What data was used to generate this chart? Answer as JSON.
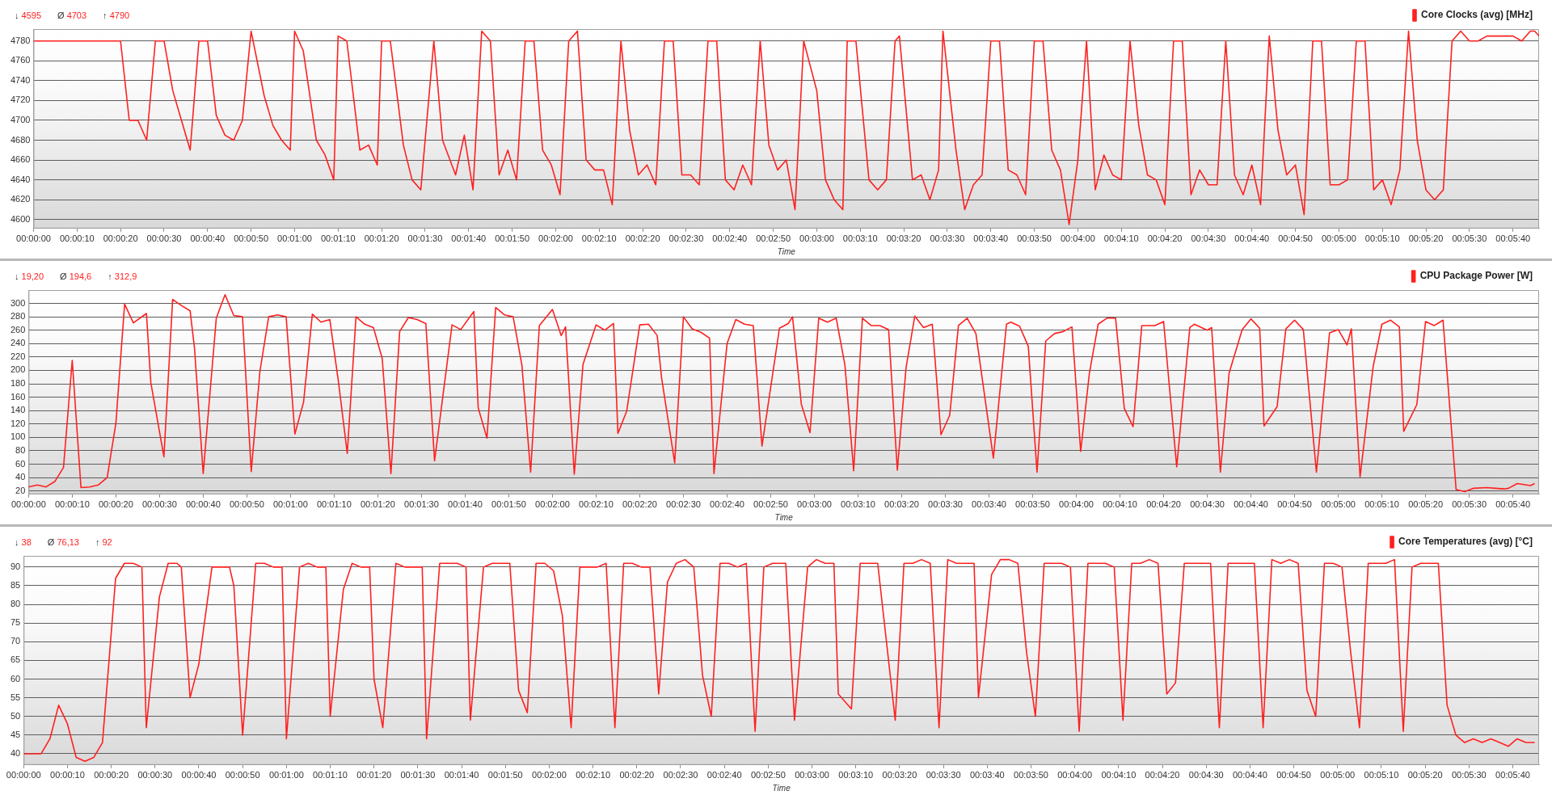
{
  "chart_data": [
    {
      "type": "line",
      "annotations": [
        "↓ 4595",
        "Ø 4703",
        "↑ 4790"
      ],
      "xlabel": "Time",
      "legend": "top right",
      "grid": "y",
      "marker": "none",
      "line_style": "solid",
      "xlim": [
        0,
        346
      ],
      "ylim": [
        4591,
        4792
      ],
      "yticks": [
        4600,
        4620,
        4640,
        4660,
        4680,
        4700,
        4720,
        4740,
        4760,
        4780
      ],
      "xticks": [
        {
          "value": 0,
          "label": "00:00:00"
        },
        {
          "value": 10,
          "label": "00:00:10"
        },
        {
          "value": 20,
          "label": "00:00:20"
        },
        {
          "value": 30,
          "label": "00:00:30"
        },
        {
          "value": 40,
          "label": "00:00:40"
        },
        {
          "value": 50,
          "label": "00:00:50"
        },
        {
          "value": 60,
          "label": "00:01:00"
        },
        {
          "value": 70,
          "label": "00:01:10"
        },
        {
          "value": 80,
          "label": "00:01:20"
        },
        {
          "value": 90,
          "label": "00:01:30"
        },
        {
          "value": 100,
          "label": "00:01:40"
        },
        {
          "value": 110,
          "label": "00:01:50"
        },
        {
          "value": 120,
          "label": "00:02:00"
        },
        {
          "value": 130,
          "label": "00:02:10"
        },
        {
          "value": 140,
          "label": "00:02:20"
        },
        {
          "value": 150,
          "label": "00:02:30"
        },
        {
          "value": 160,
          "label": "00:02:40"
        },
        {
          "value": 170,
          "label": "00:02:50"
        },
        {
          "value": 180,
          "label": "00:03:00"
        },
        {
          "value": 190,
          "label": "00:03:10"
        },
        {
          "value": 200,
          "label": "00:03:20"
        },
        {
          "value": 210,
          "label": "00:03:30"
        },
        {
          "value": 220,
          "label": "00:03:40"
        },
        {
          "value": 230,
          "label": "00:03:50"
        },
        {
          "value": 240,
          "label": "00:04:00"
        },
        {
          "value": 250,
          "label": "00:04:10"
        },
        {
          "value": 260,
          "label": "00:04:20"
        },
        {
          "value": 270,
          "label": "00:04:30"
        },
        {
          "value": 280,
          "label": "00:04:40"
        },
        {
          "value": 290,
          "label": "00:04:50"
        },
        {
          "value": 300,
          "label": "00:05:00"
        },
        {
          "value": 310,
          "label": "00:05:10"
        },
        {
          "value": 320,
          "label": "00:05:20"
        },
        {
          "value": 330,
          "label": "00:05:30"
        },
        {
          "value": 340,
          "label": "00:05:40"
        }
      ],
      "x": [
        0,
        20,
        22,
        24,
        26,
        28,
        30,
        32,
        34,
        36,
        38,
        40,
        42,
        44,
        46,
        48,
        50,
        53,
        55,
        57,
        59,
        60,
        62,
        65,
        67,
        69,
        70,
        72,
        75,
        77,
        79,
        80,
        82,
        85,
        87,
        89,
        92,
        94,
        97,
        99,
        101,
        103,
        105,
        107,
        109,
        111,
        113,
        115,
        117,
        119,
        121,
        123,
        125,
        127,
        129,
        131,
        133,
        135,
        137,
        139,
        141,
        143,
        145,
        147,
        149,
        151,
        153,
        155,
        157,
        159,
        161,
        163,
        165,
        167,
        169,
        171,
        173,
        175,
        177,
        180,
        182,
        184,
        186,
        187,
        189,
        192,
        194,
        196,
        198,
        199,
        202,
        204,
        206,
        208,
        209,
        212,
        214,
        216,
        218,
        220,
        222,
        224,
        226,
        228,
        230,
        232,
        234,
        236,
        238,
        240,
        242,
        244,
        246,
        248,
        250,
        252,
        254,
        256,
        258,
        260,
        262,
        264,
        266,
        268,
        270,
        272,
        274,
        276,
        278,
        280,
        282,
        284,
        286,
        288,
        290,
        292,
        294,
        296,
        298,
        300,
        302,
        304,
        306,
        308,
        310,
        312,
        314,
        316,
        318,
        320,
        322,
        324,
        326,
        328,
        330,
        332,
        334,
        340,
        342,
        344,
        345,
        346
      ],
      "series": [
        {
          "name": "Core Clocks (avg) [MHz]",
          "color": "#ff2020",
          "values": [
            4780,
            4780,
            4700,
            4700,
            4680,
            4780,
            4780,
            4730,
            4700,
            4670,
            4780,
            4780,
            4705,
            4685,
            4680,
            4700,
            4790,
            4725,
            4695,
            4680,
            4670,
            4790,
            4770,
            4680,
            4665,
            4640,
            4785,
            4780,
            4670,
            4675,
            4655,
            4780,
            4780,
            4675,
            4640,
            4630,
            4780,
            4680,
            4645,
            4685,
            4630,
            4790,
            4780,
            4645,
            4670,
            4640,
            4780,
            4780,
            4670,
            4655,
            4625,
            4780,
            4790,
            4660,
            4650,
            4650,
            4615,
            4780,
            4690,
            4645,
            4655,
            4635,
            4780,
            4780,
            4645,
            4645,
            4635,
            4780,
            4780,
            4640,
            4630,
            4655,
            4635,
            4780,
            4675,
            4650,
            4660,
            4610,
            4780,
            4730,
            4640,
            4620,
            4610,
            4780,
            4780,
            4640,
            4630,
            4640,
            4780,
            4785,
            4640,
            4645,
            4620,
            4650,
            4790,
            4670,
            4610,
            4635,
            4645,
            4780,
            4780,
            4650,
            4645,
            4625,
            4780,
            4780,
            4670,
            4650,
            4595,
            4660,
            4780,
            4630,
            4665,
            4645,
            4640,
            4780,
            4695,
            4645,
            4640,
            4615,
            4780,
            4780,
            4625,
            4650,
            4635,
            4635,
            4780,
            4645,
            4625,
            4655,
            4615,
            4785,
            4690,
            4645,
            4655,
            4605,
            4780,
            4780,
            4635,
            4635,
            4640,
            4780,
            4780,
            4630,
            4640,
            4615,
            4650,
            4790,
            4680,
            4630,
            4620,
            4630,
            4780,
            4790,
            4780,
            4780,
            4785,
            4785,
            4780,
            4790,
            4790,
            4785
          ]
        }
      ]
    },
    {
      "type": "line",
      "annotations": [
        "↓ 19,20",
        "Ø 194,6",
        "↑ 312,9"
      ],
      "xlabel": "Time",
      "legend": "top right",
      "grid": "y",
      "marker": "none",
      "line_style": "solid",
      "xlim": [
        0,
        346
      ],
      "ylim": [
        15,
        320
      ],
      "yticks": [
        20,
        40,
        60,
        80,
        100,
        120,
        140,
        160,
        180,
        200,
        220,
        240,
        260,
        280,
        300
      ],
      "xticks": [
        {
          "value": 0,
          "label": "00:00:00"
        },
        {
          "value": 10,
          "label": "00:00:10"
        },
        {
          "value": 20,
          "label": "00:00:20"
        },
        {
          "value": 30,
          "label": "00:00:30"
        },
        {
          "value": 40,
          "label": "00:00:40"
        },
        {
          "value": 50,
          "label": "00:00:50"
        },
        {
          "value": 60,
          "label": "00:01:00"
        },
        {
          "value": 70,
          "label": "00:01:10"
        },
        {
          "value": 80,
          "label": "00:01:20"
        },
        {
          "value": 90,
          "label": "00:01:30"
        },
        {
          "value": 100,
          "label": "00:01:40"
        },
        {
          "value": 110,
          "label": "00:01:50"
        },
        {
          "value": 120,
          "label": "00:02:00"
        },
        {
          "value": 130,
          "label": "00:02:10"
        },
        {
          "value": 140,
          "label": "00:02:20"
        },
        {
          "value": 150,
          "label": "00:02:30"
        },
        {
          "value": 160,
          "label": "00:02:40"
        },
        {
          "value": 170,
          "label": "00:02:50"
        },
        {
          "value": 180,
          "label": "00:03:00"
        },
        {
          "value": 190,
          "label": "00:03:10"
        },
        {
          "value": 200,
          "label": "00:03:20"
        },
        {
          "value": 210,
          "label": "00:03:30"
        },
        {
          "value": 220,
          "label": "00:03:40"
        },
        {
          "value": 230,
          "label": "00:03:50"
        },
        {
          "value": 240,
          "label": "00:04:00"
        },
        {
          "value": 250,
          "label": "00:04:10"
        },
        {
          "value": 260,
          "label": "00:04:20"
        },
        {
          "value": 270,
          "label": "00:04:30"
        },
        {
          "value": 280,
          "label": "00:04:40"
        },
        {
          "value": 290,
          "label": "00:04:50"
        },
        {
          "value": 300,
          "label": "00:05:00"
        },
        {
          "value": 310,
          "label": "00:05:10"
        },
        {
          "value": 320,
          "label": "00:05:20"
        },
        {
          "value": 330,
          "label": "00:05:30"
        },
        {
          "value": 340,
          "label": "00:05:40"
        }
      ],
      "x": [
        0,
        2,
        4,
        6,
        8,
        10,
        12,
        14,
        16,
        18,
        20,
        22,
        24,
        27,
        28,
        31,
        33,
        35,
        37,
        38,
        40,
        43,
        45,
        47,
        49,
        51,
        53,
        55,
        57,
        59,
        61,
        63,
        65,
        67,
        69,
        71,
        73,
        75,
        77,
        79,
        81,
        83,
        85,
        87,
        89,
        91,
        93,
        97,
        99,
        102,
        103,
        105,
        107,
        109,
        111,
        113,
        115,
        117,
        120,
        122,
        123,
        125,
        127,
        130,
        132,
        134,
        135,
        137,
        140,
        142,
        144,
        145,
        148,
        150,
        152,
        154,
        156,
        157,
        160,
        162,
        164,
        166,
        168,
        172,
        174,
        175,
        177,
        179,
        181,
        183,
        185,
        187,
        189,
        191,
        193,
        195,
        197,
        199,
        201,
        203,
        205,
        207,
        209,
        211,
        213,
        215,
        217,
        221,
        224,
        225,
        227,
        229,
        231,
        233,
        235,
        237,
        239,
        241,
        243,
        245,
        247,
        249,
        251,
        253,
        255,
        258,
        260,
        261,
        263,
        266,
        267,
        270,
        271,
        273,
        275,
        278,
        280,
        282,
        283,
        286,
        288,
        290,
        292,
        295,
        298,
        300,
        302,
        303,
        305,
        308,
        310,
        312,
        314,
        315,
        318,
        320,
        322,
        324,
        327,
        329,
        331,
        334,
        336,
        338,
        339,
        341,
        344,
        345
      ],
      "series": [
        {
          "name": "CPU Package Power [W]",
          "color": "#ff2020",
          "values": [
            26,
            29,
            26,
            34,
            55,
            215,
            25,
            26,
            29,
            40,
            121,
            299,
            271,
            285,
            182,
            71,
            306,
            297,
            289,
            234,
            46,
            278,
            313,
            282,
            280,
            49,
            199,
            280,
            283,
            280,
            105,
            153,
            284,
            272,
            276,
            182,
            76,
            280,
            269,
            264,
            218,
            46,
            258,
            279,
            276,
            270,
            65,
            268,
            261,
            288,
            144,
            99,
            294,
            283,
            280,
            208,
            48,
            267,
            291,
            252,
            265,
            45,
            209,
            268,
            260,
            270,
            106,
            139,
            268,
            269,
            252,
            189,
            62,
            280,
            262,
            257,
            248,
            46,
            240,
            276,
            269,
            267,
            87,
            263,
            270,
            280,
            150,
            107,
            278,
            272,
            278,
            208,
            50,
            278,
            267,
            267,
            261,
            51,
            204,
            281,
            264,
            269,
            104,
            133,
            267,
            278,
            255,
            69,
            269,
            272,
            266,
            236,
            48,
            244,
            255,
            258,
            265,
            79,
            196,
            269,
            278,
            278,
            143,
            116,
            267,
            267,
            273,
            199,
            56,
            264,
            269,
            260,
            264,
            48,
            196,
            261,
            277,
            263,
            117,
            146,
            262,
            275,
            261,
            48,
            256,
            261,
            238,
            262,
            41,
            206,
            269,
            275,
            265,
            109,
            149,
            273,
            267,
            275,
            22,
            19,
            24,
            25,
            24,
            23,
            24,
            31,
            28,
            31
          ]
        }
      ]
    },
    {
      "type": "line",
      "annotations": [
        "↓ 38",
        "Ø 76,13",
        "↑ 92"
      ],
      "xlabel": "Time",
      "legend": "top right",
      "grid": "y",
      "marker": "none",
      "line_style": "solid",
      "xlim": [
        0,
        346
      ],
      "ylim": [
        37,
        93
      ],
      "yticks": [
        40,
        45,
        50,
        55,
        60,
        65,
        70,
        75,
        80,
        85,
        90
      ],
      "xticks": [
        {
          "value": 0,
          "label": "00:00:00"
        },
        {
          "value": 10,
          "label": "00:00:10"
        },
        {
          "value": 20,
          "label": "00:00:20"
        },
        {
          "value": 30,
          "label": "00:00:30"
        },
        {
          "value": 40,
          "label": "00:00:40"
        },
        {
          "value": 50,
          "label": "00:00:50"
        },
        {
          "value": 60,
          "label": "00:01:00"
        },
        {
          "value": 70,
          "label": "00:01:10"
        },
        {
          "value": 80,
          "label": "00:01:20"
        },
        {
          "value": 90,
          "label": "00:01:30"
        },
        {
          "value": 100,
          "label": "00:01:40"
        },
        {
          "value": 110,
          "label": "00:01:50"
        },
        {
          "value": 120,
          "label": "00:02:00"
        },
        {
          "value": 130,
          "label": "00:02:10"
        },
        {
          "value": 140,
          "label": "00:02:20"
        },
        {
          "value": 150,
          "label": "00:02:30"
        },
        {
          "value": 160,
          "label": "00:02:40"
        },
        {
          "value": 170,
          "label": "00:02:50"
        },
        {
          "value": 180,
          "label": "00:03:00"
        },
        {
          "value": 190,
          "label": "00:03:10"
        },
        {
          "value": 200,
          "label": "00:03:20"
        },
        {
          "value": 210,
          "label": "00:03:30"
        },
        {
          "value": 220,
          "label": "00:03:40"
        },
        {
          "value": 230,
          "label": "00:03:50"
        },
        {
          "value": 240,
          "label": "00:04:00"
        },
        {
          "value": 250,
          "label": "00:04:10"
        },
        {
          "value": 260,
          "label": "00:04:20"
        },
        {
          "value": 270,
          "label": "00:04:30"
        },
        {
          "value": 280,
          "label": "00:04:40"
        },
        {
          "value": 290,
          "label": "00:04:50"
        },
        {
          "value": 300,
          "label": "00:05:00"
        },
        {
          "value": 310,
          "label": "00:05:10"
        },
        {
          "value": 320,
          "label": "00:05:20"
        },
        {
          "value": 330,
          "label": "00:05:30"
        },
        {
          "value": 340,
          "label": "00:05:40"
        }
      ],
      "x": [
        0,
        4,
        6,
        8,
        10,
        12,
        14,
        16,
        18,
        21,
        23,
        25,
        27,
        28,
        31,
        33,
        35,
        36,
        38,
        40,
        43,
        45,
        47,
        48,
        50,
        53,
        55,
        57,
        59,
        60,
        63,
        65,
        67,
        69,
        70,
        73,
        75,
        77,
        79,
        80,
        82,
        85,
        87,
        89,
        91,
        92,
        95,
        97,
        99,
        101,
        102,
        105,
        107,
        109,
        111,
        113,
        115,
        117,
        119,
        121,
        123,
        125,
        127,
        129,
        131,
        133,
        135,
        137,
        139,
        141,
        143,
        145,
        147,
        149,
        151,
        153,
        155,
        157,
        159,
        161,
        163,
        165,
        167,
        169,
        171,
        174,
        176,
        179,
        181,
        183,
        185,
        186,
        189,
        191,
        193,
        195,
        199,
        201,
        203,
        205,
        207,
        209,
        211,
        213,
        215,
        217,
        218,
        221,
        223,
        225,
        227,
        229,
        231,
        233,
        235,
        237,
        239,
        241,
        243,
        245,
        247,
        249,
        251,
        253,
        255,
        257,
        259,
        261,
        263,
        265,
        267,
        269,
        271,
        273,
        275,
        277,
        279,
        281,
        283,
        285,
        287,
        289,
        291,
        293,
        295,
        297,
        299,
        301,
        303,
        305,
        307,
        309,
        311,
        313,
        315,
        317,
        319,
        321,
        323,
        325,
        327,
        329,
        331,
        333,
        335,
        337,
        339,
        341,
        343,
        345
      ],
      "series": [
        {
          "name": "Core Temperatures (avg) [°C]",
          "color": "#ff2020",
          "values": [
            40,
            40,
            44,
            53,
            48,
            39,
            38,
            39,
            43,
            87,
            91,
            91,
            90,
            47,
            82,
            91,
            91,
            90,
            55,
            64,
            90,
            90,
            90,
            85,
            45,
            91,
            91,
            90,
            90,
            44,
            90,
            91,
            90,
            90,
            50,
            84,
            91,
            90,
            90,
            60,
            47,
            91,
            90,
            90,
            90,
            44,
            91,
            91,
            91,
            90,
            49,
            90,
            91,
            91,
            91,
            57,
            51,
            91,
            91,
            89,
            77,
            47,
            90,
            90,
            90,
            91,
            47,
            91,
            91,
            90,
            90,
            56,
            86,
            91,
            92,
            90,
            61,
            50,
            91,
            91,
            90,
            91,
            46,
            90,
            91,
            91,
            49,
            90,
            92,
            91,
            91,
            56,
            52,
            91,
            91,
            91,
            49,
            91,
            91,
            92,
            91,
            47,
            92,
            91,
            91,
            91,
            55,
            88,
            92,
            92,
            91,
            67,
            50,
            91,
            91,
            91,
            90,
            46,
            91,
            91,
            91,
            90,
            49,
            91,
            91,
            92,
            91,
            56,
            59,
            91,
            91,
            91,
            91,
            47,
            91,
            91,
            91,
            91,
            47,
            92,
            91,
            92,
            91,
            57,
            50,
            91,
            91,
            90,
            67,
            47,
            91,
            91,
            91,
            92,
            46,
            90,
            91,
            91,
            91,
            53,
            45,
            43,
            44,
            43,
            44,
            43,
            42,
            44,
            43,
            43
          ]
        }
      ]
    }
  ]
}
